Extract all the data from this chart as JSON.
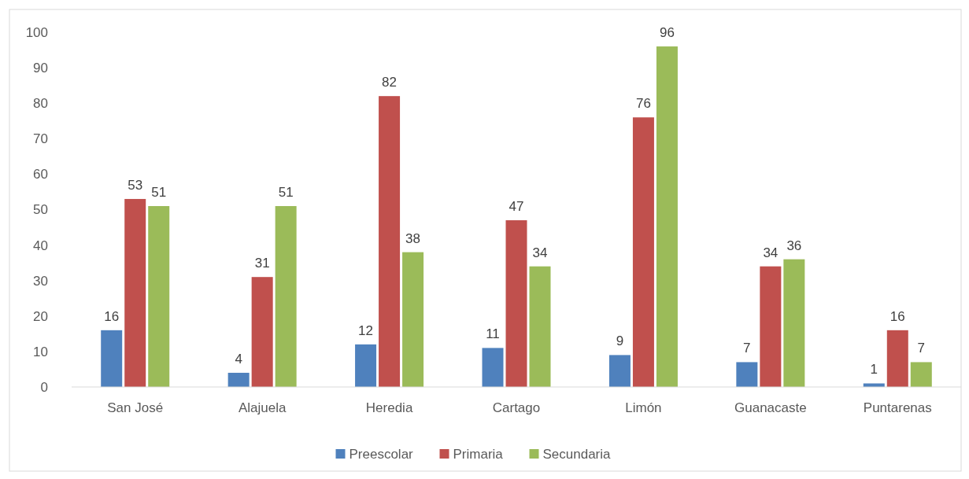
{
  "chart_data": {
    "type": "bar",
    "categories": [
      "San José",
      "Alajuela",
      "Heredia",
      "Cartago",
      "Limón",
      "Guanacaste",
      "Puntarenas"
    ],
    "series": [
      {
        "name": "Preescolar",
        "color": "#4f81bd",
        "values": [
          16,
          4,
          12,
          11,
          9,
          7,
          1
        ]
      },
      {
        "name": "Primaria",
        "color": "#c0504d",
        "values": [
          53,
          31,
          82,
          47,
          76,
          34,
          16
        ]
      },
      {
        "name": "Secundaria",
        "color": "#9bbb59",
        "values": [
          51,
          51,
          38,
          34,
          96,
          36,
          7
        ]
      }
    ],
    "ylim": [
      0,
      100
    ],
    "yticks": [
      0,
      10,
      20,
      30,
      40,
      50,
      60,
      70,
      80,
      90,
      100
    ],
    "data_labels": true,
    "legend": "bottom",
    "grid": false
  }
}
